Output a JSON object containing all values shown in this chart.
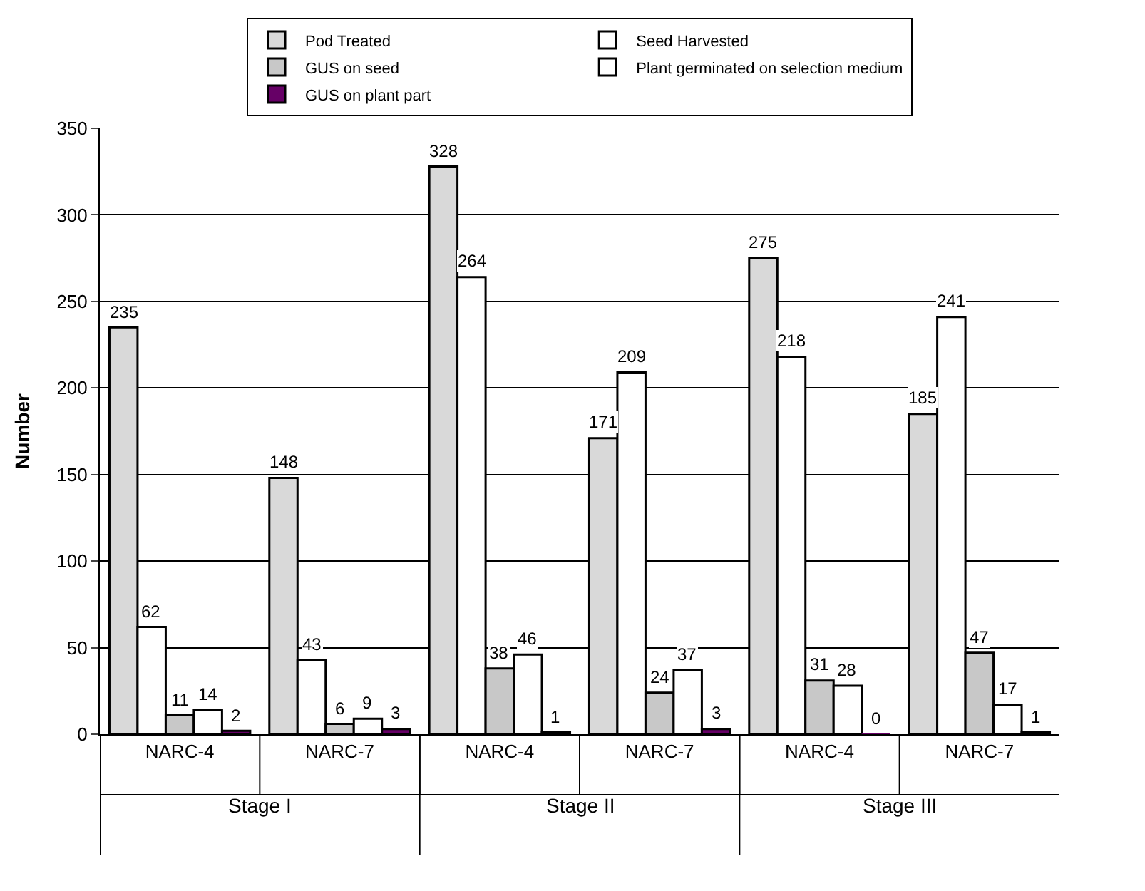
{
  "chart_data": {
    "type": "bar",
    "ylabel": "Number",
    "categories": [
      "NARC-4",
      "NARC-7",
      "NARC-4",
      "NARC-7",
      "NARC-4",
      "NARC-7"
    ],
    "annotations": [
      "Stage I",
      "Stage II",
      "Stage III"
    ],
    "series": [
      {
        "name": "Pod Treated",
        "color": "#d9d9d9",
        "values": [
          235,
          148,
          328,
          171,
          275,
          185
        ]
      },
      {
        "name": "Seed Harvested",
        "color": "#ffffff",
        "values": [
          62,
          43,
          264,
          209,
          218,
          241
        ]
      },
      {
        "name": "GUS on seed",
        "color": "#c8c8c8",
        "values": [
          11,
          6,
          38,
          24,
          31,
          47
        ]
      },
      {
        "name": "Plant germinated on selection medium",
        "color": "#ffffff",
        "values": [
          14,
          9,
          46,
          37,
          28,
          17
        ]
      },
      {
        "name": "GUS on plant part",
        "color": "#660066",
        "values": [
          2,
          3,
          1,
          3,
          0,
          1
        ]
      }
    ],
    "ylim": [
      0,
      350
    ],
    "yticks": [
      0,
      50,
      100,
      150,
      200,
      250,
      300,
      350
    ],
    "grid": "y",
    "legend": "top",
    "data_labels": true
  }
}
